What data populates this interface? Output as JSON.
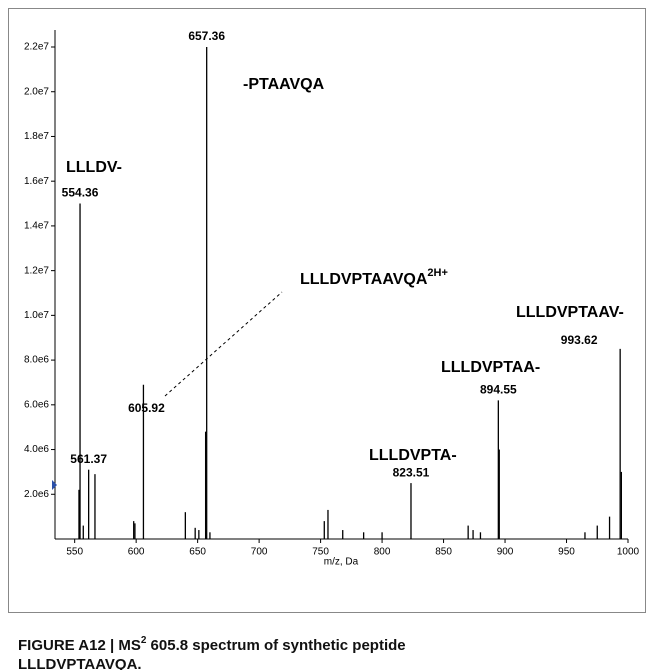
{
  "chart_data": {
    "type": "spectrum",
    "xlabel": "m/z, Da",
    "xlim": [
      534,
      1000
    ],
    "xticks": [
      550,
      600,
      650,
      700,
      750,
      800,
      850,
      900,
      950,
      1000
    ],
    "ylim": [
      0,
      22500000
    ],
    "yticks": [
      {
        "value": 2000000,
        "label": "2.0e6"
      },
      {
        "value": 4000000,
        "label": "4.0e6"
      },
      {
        "value": 6000000,
        "label": "6.0e6"
      },
      {
        "value": 8000000,
        "label": "8.0e6"
      },
      {
        "value": 10000000,
        "label": "1.0e7"
      },
      {
        "value": 12000000,
        "label": "1.2e7"
      },
      {
        "value": 14000000,
        "label": "1.4e7"
      },
      {
        "value": 16000000,
        "label": "1.6e7"
      },
      {
        "value": 18000000,
        "label": "1.8e7"
      },
      {
        "value": 20000000,
        "label": "2.0e7"
      },
      {
        "value": 22000000,
        "label": "2.2e7"
      }
    ],
    "color": "#000000",
    "labeled_peaks": {
      "x": [
        554.36,
        561.37,
        605.92,
        657.36,
        823.51,
        894.55,
        993.62
      ],
      "values": [
        15000000,
        3100000,
        6900000,
        22000000,
        2500000,
        6200000,
        8500000
      ]
    },
    "peaks": {
      "x": [
        553.5,
        557,
        566.5,
        598,
        599,
        640,
        648,
        651,
        656.5,
        660,
        753,
        756,
        768,
        785,
        800,
        870,
        874,
        880,
        895.3,
        965,
        975,
        985,
        994.6
      ],
      "values": [
        2200000,
        600000,
        2900000,
        800000,
        700000,
        1200000,
        500000,
        400000,
        4800000,
        300000,
        800000,
        1300000,
        400000,
        300000,
        300000,
        600000,
        400000,
        300000,
        4000000,
        300000,
        600000,
        1000000,
        3000000
      ]
    },
    "fragments": [
      "LLLDV-",
      "-PTAAVQA",
      "LLLDVPTA-",
      "LLLDVPTAA-",
      "LLLDVPTAAV-"
    ],
    "precursor": {
      "text": "LLLDVPTAAVQA",
      "charge": "2H+"
    },
    "caption": {
      "prefix": "FIGURE A12 | MS",
      "sup": "2",
      "line1": " 605.8 spectrum of synthetic peptide",
      "line2": "LLLDVPTAAVQA."
    }
  }
}
